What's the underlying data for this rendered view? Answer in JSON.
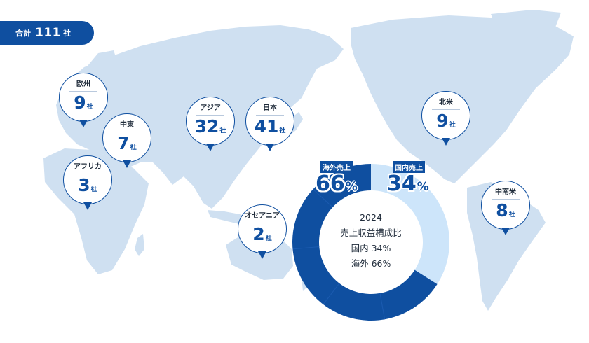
{
  "total": {
    "label": "合計",
    "count": "111",
    "unit": "社"
  },
  "regions": [
    {
      "id": "europe",
      "name": "欧州",
      "count": "9",
      "unit": "社"
    },
    {
      "id": "middle-east",
      "name": "中東",
      "count": "7",
      "unit": "社"
    },
    {
      "id": "africa",
      "name": "アフリカ",
      "count": "3",
      "unit": "社"
    },
    {
      "id": "asia",
      "name": "アジア",
      "count": "32",
      "unit": "社"
    },
    {
      "id": "japan",
      "name": "日本",
      "count": "41",
      "unit": "社"
    },
    {
      "id": "oceania",
      "name": "オセアニア",
      "count": "2",
      "unit": "社"
    },
    {
      "id": "north-america",
      "name": "北米",
      "count": "9",
      "unit": "社"
    },
    {
      "id": "latin-america",
      "name": "中南米",
      "count": "8",
      "unit": "社"
    }
  ],
  "chart_data": {
    "type": "pie",
    "year": "2024",
    "title": "売上収益構成比",
    "center_lines": [
      "2024",
      "売上収益構成比",
      "国内 34%",
      "海外 66%"
    ],
    "slices": [
      {
        "name": "国内売上",
        "value": 34,
        "pct_label": "34",
        "pct_sign": "%",
        "color": "#cde5fa"
      },
      {
        "name": "海外売上",
        "value": 66,
        "pct_label": "66",
        "pct_sign": "%",
        "color": "#0f4fa0"
      }
    ]
  },
  "colors": {
    "accent": "#0f4fa0",
    "map_land": "#cfe0f1",
    "domestic": "#cde5fa",
    "overseas": "#0f4fa0"
  }
}
